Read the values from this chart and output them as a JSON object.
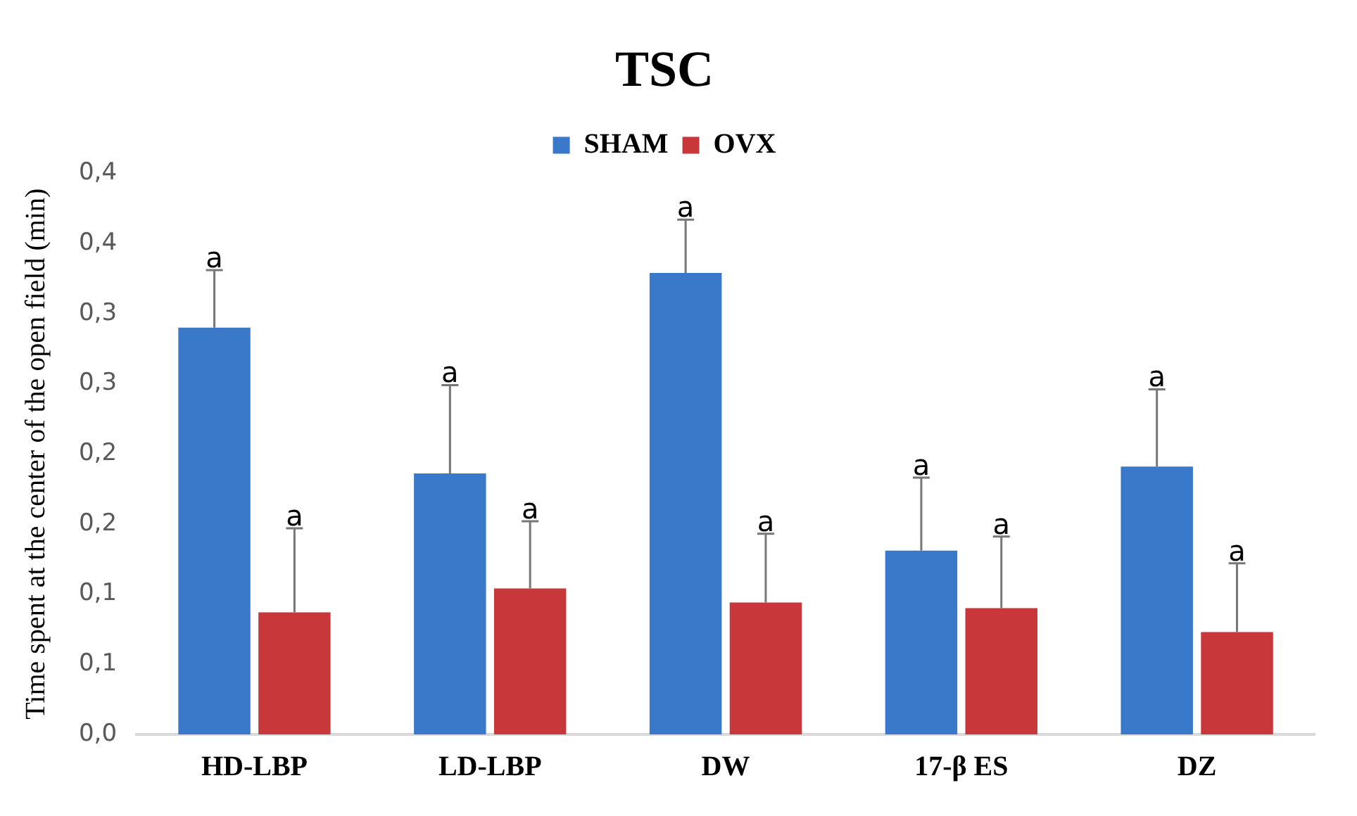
{
  "chart_data": {
    "type": "bar",
    "title": "TSC",
    "ylabel": "Time spent at the center of the open field (min)",
    "categories": [
      "HD-LBP",
      "LD-LBP",
      "DW",
      "17-β ES",
      "DZ"
    ],
    "series": [
      {
        "name": "SHAM",
        "color": "#3a78c9",
        "values": [
          0.29,
          0.186,
          0.329,
          0.131,
          0.191
        ],
        "errors": [
          0.041,
          0.063,
          0.038,
          0.052,
          0.055
        ],
        "value_labels": [
          "a",
          "a",
          "a",
          "a",
          "a"
        ]
      },
      {
        "name": "OVX",
        "color": "#c8373a",
        "values": [
          0.087,
          0.104,
          0.094,
          0.09,
          0.073
        ],
        "errors": [
          0.06,
          0.048,
          0.049,
          0.051,
          0.049
        ],
        "value_labels": [
          "a",
          "a",
          "a",
          "a",
          "a"
        ]
      }
    ],
    "ylim": [
      0,
      0.4
    ],
    "yticks": [
      {
        "value": 0,
        "label": "0,0"
      },
      {
        "value": 0.05,
        "label": "0,1"
      },
      {
        "value": 0.1,
        "label": "0,1"
      },
      {
        "value": 0.15,
        "label": "0,2"
      },
      {
        "value": 0.2,
        "label": "0,2"
      },
      {
        "value": 0.25,
        "label": "0,3"
      },
      {
        "value": 0.3,
        "label": "0,3"
      },
      {
        "value": 0.35,
        "label": "0,4"
      },
      {
        "value": 0.4,
        "label": "0,4"
      }
    ],
    "legend": "top",
    "grid": false
  }
}
